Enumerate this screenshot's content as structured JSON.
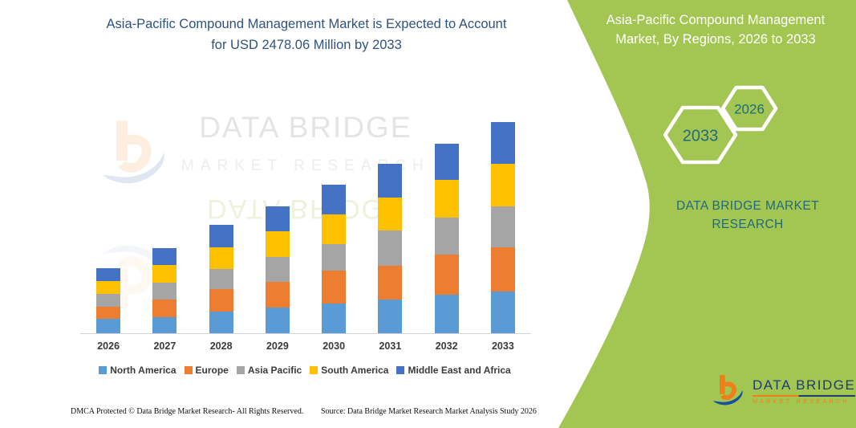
{
  "colors": {
    "panel_green": "#a3c653",
    "title_navy": "#2e5380",
    "teal": "#1f6a7d",
    "label_gray": "#3b3b3b",
    "axis_line": "#d0d3d8",
    "logo_navy": "#1c3e6e",
    "logo_orange": "#f07f1a"
  },
  "header": {
    "title": "Asia-Pacific Compound Management Market is Expected to Account for USD 2478.06 Million by 2033"
  },
  "side_panel": {
    "title": "Asia-Pacific Compound Management Market, By Regions, 2026 to 2033",
    "hexagon_back_label": "2033",
    "hexagon_front_label": "2026",
    "brand": "DATA BRIDGE MARKET RESEARCH"
  },
  "watermark": {
    "line1": "DATA BRIDGE",
    "line2": "MARKET RESEARCH"
  },
  "logo": {
    "title": "DATA BRIDGE",
    "subtitle": "MARKET RESEARCH"
  },
  "footer": {
    "dmca": "DMCA Protected © Data Bridge Market Research-  All Rights Reserved.",
    "source": "Source: Data Bridge Market Research  Market Analysis Study 2026"
  },
  "chart_data": {
    "type": "bar",
    "stacked": true,
    "unit": "USD Million",
    "values_are_estimates": true,
    "categories": [
      "2026",
      "2027",
      "2028",
      "2029",
      "2030",
      "2031",
      "2032",
      "2033"
    ],
    "series": [
      {
        "name": "North America",
        "color": "#5b9bd5",
        "values": [
          167,
          189,
          256,
          306,
          348,
          395,
          451,
          490
        ]
      },
      {
        "name": "Europe",
        "color": "#ed7d31",
        "values": [
          149,
          205,
          265,
          300,
          388,
          401,
          468,
          514
        ]
      },
      {
        "name": "Asia Pacific",
        "color": "#a5a5a5",
        "values": [
          145,
          196,
          230,
          294,
          306,
          414,
          438,
          486
        ]
      },
      {
        "name": "South America",
        "color": "#ffc000",
        "values": [
          149,
          208,
          262,
          300,
          357,
          385,
          442,
          499
        ]
      },
      {
        "name": "Middle East and Africa",
        "color": "#4472c4",
        "values": [
          158,
          196,
          259,
          294,
          348,
          395,
          429,
          489
        ]
      }
    ],
    "ylim": [
      0,
      2478.06
    ],
    "grid": false,
    "y_axis_shown": false,
    "legend_position": "bottom"
  }
}
